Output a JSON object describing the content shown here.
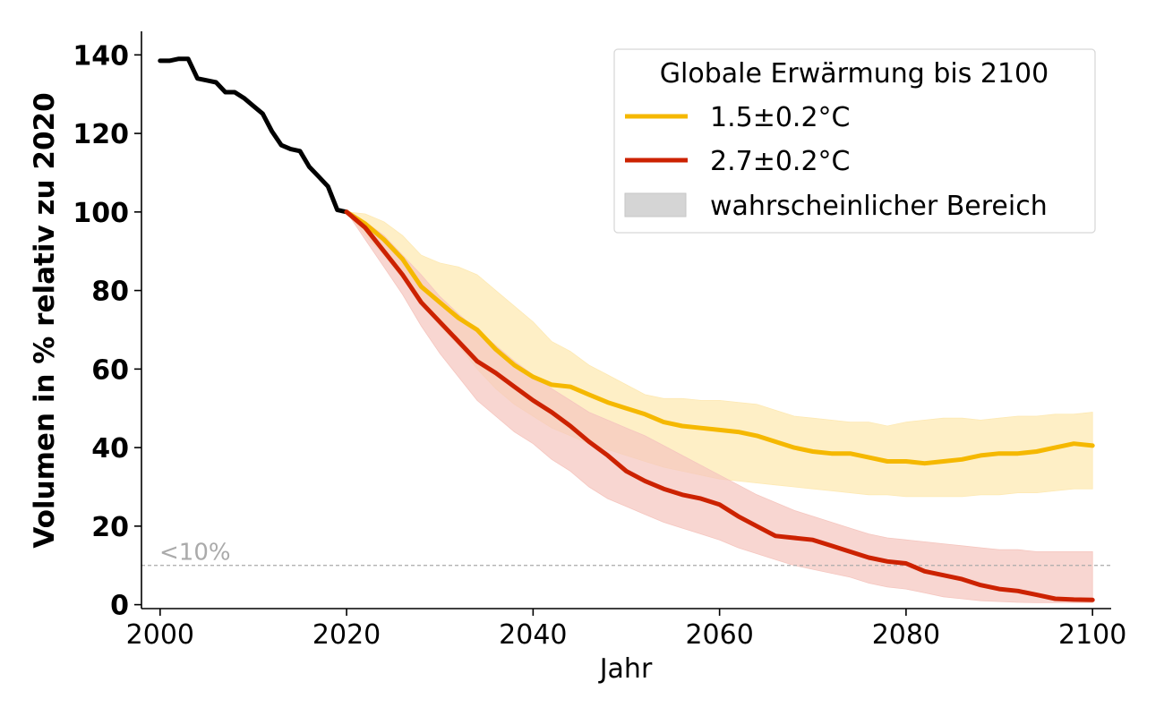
{
  "chart_data": {
    "type": "line",
    "title": "",
    "xlabel": "Jahr",
    "ylabel": "Volumen in % relativ zu 2020",
    "xlim": [
      1998,
      2102
    ],
    "ylim": [
      -1,
      146
    ],
    "xticks": [
      2000,
      2020,
      2040,
      2060,
      2080,
      2100
    ],
    "yticks": [
      0,
      20,
      40,
      60,
      80,
      100,
      120,
      140
    ],
    "xtick_labels": [
      "2000",
      "2020",
      "2040",
      "2060",
      "2080",
      "2100"
    ],
    "ytick_labels": [
      "0",
      "20",
      "40",
      "60",
      "80",
      "100",
      "120",
      "140"
    ],
    "grid": false,
    "legend": {
      "title": "Globale Erwärmung bis 2100",
      "placement": "top-right",
      "entries": [
        "1.5±0.2°C",
        "2.7±0.2°C",
        "wahrscheinlicher Bereich"
      ]
    },
    "threshold": {
      "y": 10,
      "label": "<10%",
      "color": "#aaaaaa"
    },
    "series": [
      {
        "key": "historical",
        "color": "#000000",
        "x": [
          2000,
          2001,
          2002,
          2003,
          2004,
          2005,
          2006,
          2007,
          2008,
          2009,
          2010,
          2011,
          2012,
          2013,
          2014,
          2015,
          2016,
          2017,
          2018,
          2019,
          2020
        ],
        "values": [
          138.5,
          138.5,
          139,
          139,
          134,
          133.5,
          133,
          130.5,
          130.5,
          129,
          127,
          125,
          120.5,
          117,
          116,
          115.5,
          111.5,
          109,
          106.5,
          100.5,
          100
        ]
      },
      {
        "key": "scenario_15",
        "name": "1.5±0.2°C",
        "color": "#f5b800",
        "band_color": "#fde9b3",
        "x": [
          2020,
          2022,
          2024,
          2026,
          2028,
          2030,
          2032,
          2034,
          2036,
          2038,
          2040,
          2042,
          2044,
          2046,
          2048,
          2050,
          2052,
          2054,
          2056,
          2058,
          2060,
          2062,
          2064,
          2066,
          2068,
          2070,
          2072,
          2074,
          2076,
          2078,
          2080,
          2082,
          2084,
          2086,
          2088,
          2090,
          2092,
          2094,
          2096,
          2098,
          2100
        ],
        "values": [
          100,
          97,
          93,
          88,
          81,
          77,
          73,
          70,
          65,
          61,
          58,
          56,
          55.5,
          53.5,
          51.5,
          50,
          48.5,
          46.5,
          45.5,
          45,
          44.5,
          44,
          43,
          41.5,
          40,
          39,
          38.5,
          38.5,
          37.5,
          36.5,
          36.5,
          36,
          36.5,
          37,
          38,
          38.5,
          38.5,
          39,
          40,
          41,
          40.5
        ],
        "upper": [
          100,
          99.5,
          97.5,
          94,
          89,
          87,
          86,
          84,
          80,
          76,
          72,
          67,
          64.5,
          61,
          58.5,
          56,
          53.5,
          52.5,
          52.5,
          52,
          52,
          51.5,
          51,
          49.5,
          48,
          47.5,
          47,
          46.5,
          46.5,
          45.5,
          46.5,
          47,
          47.5,
          47.5,
          47,
          47.5,
          48,
          48,
          48.5,
          48.5,
          49
        ],
        "lower": [
          100,
          94,
          89,
          83,
          77,
          71,
          66,
          60,
          55,
          51,
          48,
          45,
          43,
          41,
          39.5,
          38,
          36.5,
          35,
          34,
          33,
          32,
          31.5,
          31,
          30.5,
          30,
          29.5,
          29,
          28.5,
          28,
          28,
          27.5,
          27.5,
          27.5,
          27.5,
          28,
          28,
          28.5,
          28.5,
          29,
          29.5,
          29.5
        ]
      },
      {
        "key": "scenario_27",
        "name": "2.7±0.2°C",
        "color": "#cc2200",
        "band_color": "#f5c6bf",
        "x": [
          2020,
          2022,
          2024,
          2026,
          2028,
          2030,
          2032,
          2034,
          2036,
          2038,
          2040,
          2042,
          2044,
          2046,
          2048,
          2050,
          2052,
          2054,
          2056,
          2058,
          2060,
          2062,
          2064,
          2066,
          2068,
          2070,
          2072,
          2074,
          2076,
          2078,
          2080,
          2082,
          2084,
          2086,
          2088,
          2090,
          2092,
          2094,
          2096,
          2098,
          2100
        ],
        "values": [
          100,
          96,
          90,
          84,
          77,
          72,
          67,
          62,
          59,
          55.5,
          52,
          49,
          45.5,
          41.5,
          38,
          34,
          31.5,
          29.5,
          28,
          27,
          25.5,
          22.5,
          20,
          17.5,
          17,
          16.5,
          15,
          13.5,
          12,
          11,
          10.5,
          8.5,
          7.5,
          6.5,
          5,
          4,
          3.5,
          2.5,
          1.5,
          1.3,
          1.2
        ],
        "upper": [
          100,
          97.5,
          94,
          89,
          84,
          78.5,
          74,
          70,
          66,
          62,
          58.5,
          55,
          52,
          49,
          47,
          45,
          43,
          40.5,
          38,
          35.5,
          33,
          30.5,
          28,
          26,
          24,
          22.5,
          21,
          19.5,
          18,
          17,
          16.5,
          16,
          15.5,
          15,
          14.5,
          14,
          14,
          13.5,
          13.5,
          13.5,
          13.5
        ],
        "lower": [
          100,
          93,
          86,
          79,
          71,
          64,
          58,
          52,
          48,
          44,
          41,
          37,
          34,
          30,
          27,
          25,
          23,
          21,
          19.5,
          18,
          16.5,
          14.5,
          13,
          11.5,
          10,
          9,
          8,
          7,
          5.5,
          4.5,
          4,
          3,
          2,
          1.5,
          1,
          0.8,
          0.6,
          0.5,
          0.5,
          0.5,
          0.5
        ]
      }
    ]
  }
}
